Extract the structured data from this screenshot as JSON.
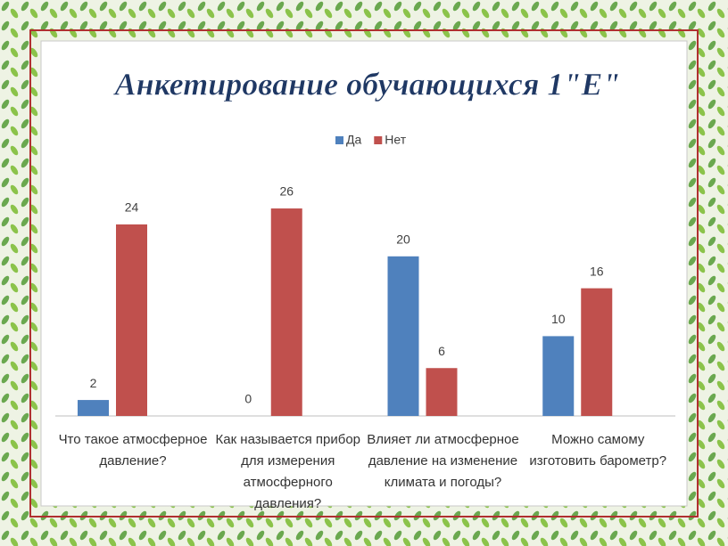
{
  "chart_data": {
    "type": "bar",
    "title": "Анкетирование обучающихся 1\"Е\"",
    "categories": [
      "Что такое атмосферное давление?",
      "Как называется прибор для измерения атмосферного давления?",
      "Влияет ли атмосферное давление на изменение климата и погоды?",
      "Можно самому изготовить барометр?"
    ],
    "series": [
      {
        "name": "Да",
        "color": "#4f81bd",
        "values": [
          2,
          0,
          20,
          10
        ]
      },
      {
        "name": "Нет",
        "color": "#c0504d",
        "values": [
          24,
          26,
          6,
          16
        ]
      }
    ],
    "legend": "top"
  }
}
